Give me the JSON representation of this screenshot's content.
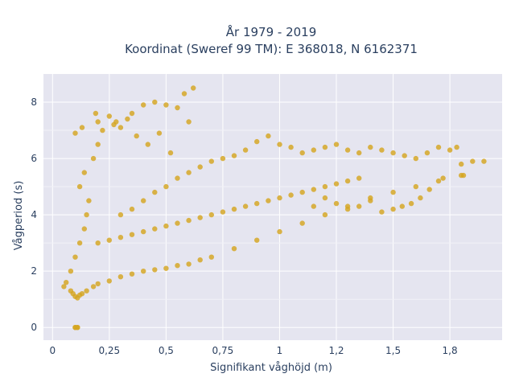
{
  "chart_data": {
    "type": "scatter",
    "title": "År 1979 - 2019",
    "subtitle": "Koordinat (Sweref 99 TM): E 368018, N 6162371",
    "xlabel": "Signifikant våghöjd (m)",
    "ylabel": "Vågperiod (s)",
    "xlim": [
      -0.04,
      1.98
    ],
    "ylim": [
      -0.45,
      9.0
    ],
    "x_ticks": [
      0,
      0.25,
      0.5,
      0.75,
      1,
      1.25,
      1.5,
      1.75
    ],
    "x_tick_labels": [
      "0",
      "0,25",
      "0,5",
      "0,75",
      "1",
      "1,2",
      "1,5",
      "1,8"
    ],
    "y_ticks": [
      0,
      2,
      4,
      6,
      8
    ],
    "y_tick_labels": [
      "0",
      "2",
      "4",
      "6",
      "8"
    ],
    "grid": true,
    "legend": "none",
    "marker_color": "#d4a520",
    "plot_bgcolor": "#e5e5f0",
    "series": [
      {
        "points": [
          [
            0.05,
            1.45
          ],
          [
            0.06,
            1.6
          ],
          [
            0.08,
            1.3
          ],
          [
            0.09,
            1.2
          ],
          [
            0.1,
            1.1
          ],
          [
            0.11,
            1.05
          ],
          [
            0.12,
            1.15
          ],
          [
            0.13,
            1.2
          ],
          [
            0.15,
            1.3
          ],
          [
            0.18,
            1.45
          ],
          [
            0.2,
            1.55
          ],
          [
            0.25,
            1.65
          ],
          [
            0.3,
            1.8
          ],
          [
            0.35,
            1.9
          ],
          [
            0.4,
            2.0
          ],
          [
            0.45,
            2.05
          ],
          [
            0.5,
            2.1
          ],
          [
            0.55,
            2.2
          ],
          [
            0.6,
            2.25
          ],
          [
            0.65,
            2.4
          ],
          [
            0.7,
            2.5
          ],
          [
            0.8,
            2.8
          ],
          [
            0.9,
            3.1
          ],
          [
            1.0,
            3.4
          ],
          [
            1.1,
            3.7
          ],
          [
            1.2,
            4.0
          ],
          [
            1.3,
            4.3
          ],
          [
            1.4,
            4.6
          ],
          [
            1.5,
            4.8
          ],
          [
            1.6,
            5.0
          ],
          [
            1.7,
            5.2
          ],
          [
            1.8,
            5.4
          ],
          [
            0.08,
            2.0
          ],
          [
            0.1,
            2.5
          ],
          [
            0.12,
            3.0
          ],
          [
            0.14,
            3.5
          ],
          [
            0.15,
            4.0
          ],
          [
            0.16,
            4.5
          ],
          [
            0.12,
            5.0
          ],
          [
            0.14,
            5.5
          ],
          [
            0.18,
            6.0
          ],
          [
            0.2,
            6.5
          ],
          [
            0.22,
            7.0
          ],
          [
            0.2,
            7.3
          ],
          [
            0.25,
            7.5
          ],
          [
            0.28,
            7.3
          ],
          [
            0.3,
            7.1
          ],
          [
            0.35,
            7.6
          ],
          [
            0.4,
            7.9
          ],
          [
            0.45,
            8.0
          ],
          [
            0.5,
            7.9
          ],
          [
            0.55,
            7.8
          ],
          [
            0.6,
            7.3
          ],
          [
            0.62,
            8.5
          ],
          [
            0.58,
            8.3
          ],
          [
            0.1,
            6.9
          ],
          [
            0.13,
            7.1
          ],
          [
            0.19,
            7.6
          ],
          [
            0.27,
            7.2
          ],
          [
            0.33,
            7.4
          ],
          [
            0.37,
            6.8
          ],
          [
            0.42,
            6.5
          ],
          [
            0.47,
            6.9
          ],
          [
            0.52,
            6.2
          ],
          [
            0.3,
            4.0
          ],
          [
            0.35,
            4.2
          ],
          [
            0.4,
            4.5
          ],
          [
            0.45,
            4.8
          ],
          [
            0.5,
            5.0
          ],
          [
            0.55,
            5.3
          ],
          [
            0.6,
            5.5
          ],
          [
            0.65,
            5.7
          ],
          [
            0.7,
            5.9
          ],
          [
            0.75,
            6.0
          ],
          [
            0.8,
            6.1
          ],
          [
            0.85,
            6.3
          ],
          [
            0.9,
            6.6
          ],
          [
            0.95,
            6.8
          ],
          [
            1.0,
            6.5
          ],
          [
            1.05,
            6.4
          ],
          [
            1.1,
            6.2
          ],
          [
            1.15,
            6.3
          ],
          [
            1.2,
            6.4
          ],
          [
            1.25,
            6.5
          ],
          [
            1.3,
            6.3
          ],
          [
            1.35,
            6.2
          ],
          [
            1.4,
            6.4
          ],
          [
            1.45,
            6.3
          ],
          [
            1.5,
            6.2
          ],
          [
            1.55,
            6.1
          ],
          [
            1.6,
            6.0
          ],
          [
            1.65,
            6.2
          ],
          [
            1.7,
            6.4
          ],
          [
            1.75,
            6.3
          ],
          [
            1.78,
            6.4
          ],
          [
            1.8,
            5.8
          ],
          [
            1.85,
            5.9
          ],
          [
            1.9,
            5.9
          ],
          [
            1.81,
            5.4
          ],
          [
            1.72,
            5.3
          ],
          [
            1.66,
            4.9
          ],
          [
            1.62,
            4.6
          ],
          [
            1.58,
            4.4
          ],
          [
            1.54,
            4.3
          ],
          [
            1.5,
            4.2
          ],
          [
            1.45,
            4.1
          ],
          [
            1.4,
            4.5
          ],
          [
            1.35,
            4.3
          ],
          [
            1.3,
            4.2
          ],
          [
            1.25,
            4.4
          ],
          [
            1.2,
            4.6
          ],
          [
            1.15,
            4.3
          ],
          [
            0.2,
            3.0
          ],
          [
            0.25,
            3.1
          ],
          [
            0.3,
            3.2
          ],
          [
            0.35,
            3.3
          ],
          [
            0.4,
            3.4
          ],
          [
            0.45,
            3.5
          ],
          [
            0.5,
            3.6
          ],
          [
            0.55,
            3.7
          ],
          [
            0.6,
            3.8
          ],
          [
            0.65,
            3.9
          ],
          [
            0.7,
            4.0
          ],
          [
            0.75,
            4.1
          ],
          [
            0.8,
            4.2
          ],
          [
            0.85,
            4.3
          ],
          [
            0.9,
            4.4
          ],
          [
            0.95,
            4.5
          ],
          [
            1.0,
            4.6
          ],
          [
            1.05,
            4.7
          ],
          [
            1.1,
            4.8
          ],
          [
            1.15,
            4.9
          ],
          [
            1.2,
            5.0
          ],
          [
            1.25,
            5.1
          ],
          [
            1.3,
            5.2
          ],
          [
            1.35,
            5.3
          ],
          [
            0.1,
            0.0
          ],
          [
            0.11,
            0.0
          ],
          [
            0.1,
            0.0
          ],
          [
            0.11,
            0.0
          ]
        ]
      }
    ]
  }
}
